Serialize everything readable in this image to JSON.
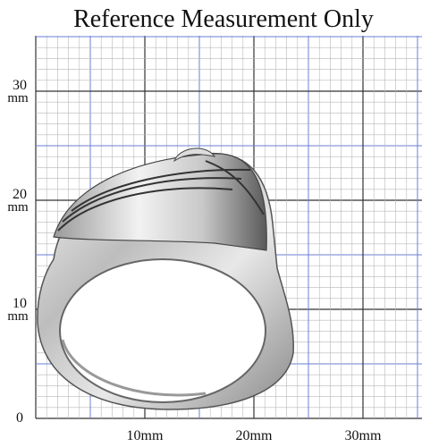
{
  "header": {
    "title": "Reference Measurement Only"
  },
  "origin": "0",
  "x_labels": [
    "10mm",
    "20mm",
    "30mm"
  ],
  "y_labels": [
    {
      "number": "10",
      "unit": "mm"
    },
    {
      "number": "20",
      "unit": "mm"
    },
    {
      "number": "30",
      "unit": "mm"
    }
  ]
}
